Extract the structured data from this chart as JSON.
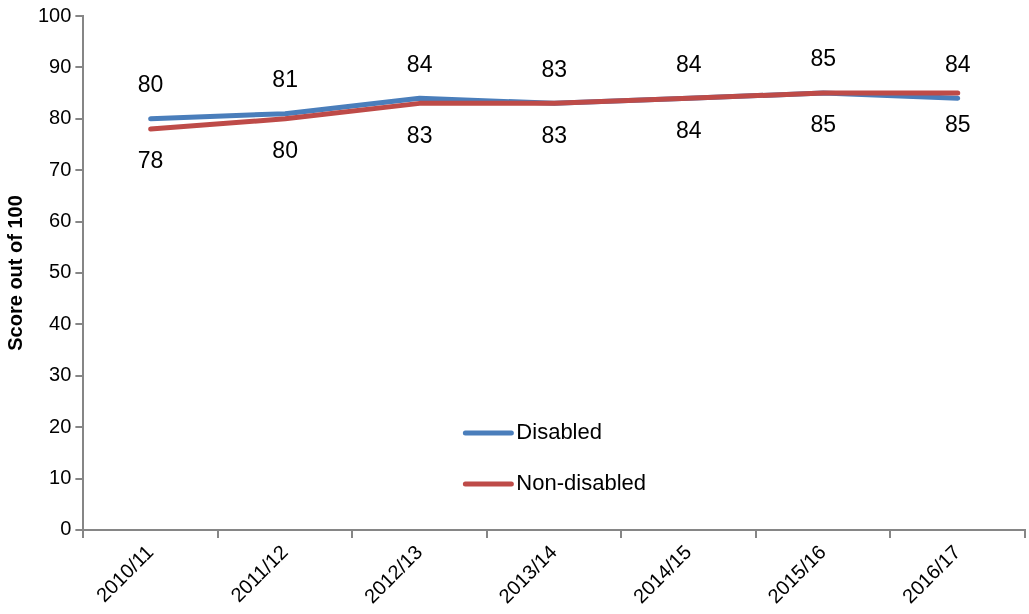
{
  "chart_data": {
    "type": "line",
    "categories": [
      "2010/11",
      "2011/12",
      "2012/13",
      "2013/14",
      "2014/15",
      "2015/16",
      "2016/17"
    ],
    "ylabel": "Score out of 100",
    "ylim": [
      0,
      100
    ],
    "yticks": [
      0,
      10,
      20,
      30,
      40,
      50,
      60,
      70,
      80,
      90,
      100
    ],
    "grid": false,
    "legend": "bottom",
    "data_labels": true,
    "series": [
      {
        "name": "Disabled",
        "color": "#4a7ebb",
        "values": [
          80,
          81,
          84,
          83,
          84,
          85,
          84
        ]
      },
      {
        "name": "Non-disabled",
        "color": "#be4b48",
        "values": [
          78,
          80,
          83,
          83,
          84,
          85,
          85
        ]
      }
    ]
  }
}
